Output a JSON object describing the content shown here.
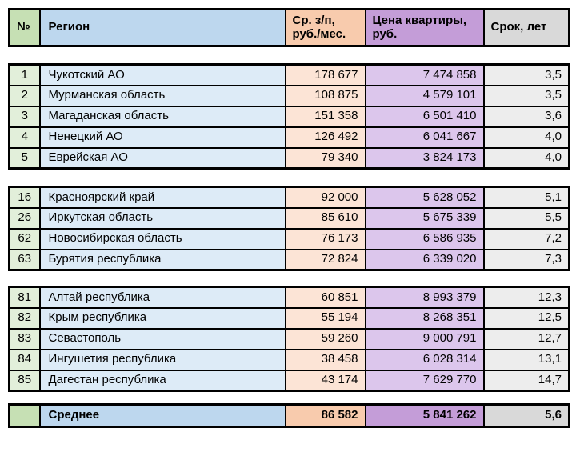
{
  "chart_data": {
    "type": "table",
    "columns": [
      "№",
      "Регион",
      "Ср. з/п, руб./мес.",
      "Цена квартиры, руб.",
      "Срок, лет"
    ],
    "groups": [
      {
        "rows": [
          {
            "num": "1",
            "region": "Чукотский АО",
            "salary": "178 677",
            "price": "7 474 858",
            "term": "3,5"
          },
          {
            "num": "2",
            "region": "Мурманская область",
            "salary": "108 875",
            "price": "4 579 101",
            "term": "3,5"
          },
          {
            "num": "3",
            "region": "Магаданская область",
            "salary": "151 358",
            "price": "6 501 410",
            "term": "3,6"
          },
          {
            "num": "4",
            "region": "Ненецкий АО",
            "salary": "126 492",
            "price": "6 041 667",
            "term": "4,0"
          },
          {
            "num": "5",
            "region": "Еврейская АО",
            "salary": "79 340",
            "price": "3 824 173",
            "term": "4,0"
          }
        ]
      },
      {
        "rows": [
          {
            "num": "16",
            "region": "Красноярский край",
            "salary": "92 000",
            "price": "5 628 052",
            "term": "5,1"
          },
          {
            "num": "26",
            "region": "Иркутская область",
            "salary": "85 610",
            "price": "5 675 339",
            "term": "5,5"
          },
          {
            "num": "62",
            "region": "Новосибирская область",
            "salary": "76 173",
            "price": "6 586 935",
            "term": "7,2"
          },
          {
            "num": "63",
            "region": "Бурятия республика",
            "salary": "72 824",
            "price": "6 339 020",
            "term": "7,3"
          }
        ]
      },
      {
        "rows": [
          {
            "num": "81",
            "region": "Алтай республика",
            "salary": "60 851",
            "price": "8 993 379",
            "term": "12,3"
          },
          {
            "num": "82",
            "region": "Крым республика",
            "salary": "55 194",
            "price": "8 268 351",
            "term": "12,5"
          },
          {
            "num": "83",
            "region": "Севастополь",
            "salary": "59 260",
            "price": "9 000 791",
            "term": "12,7"
          },
          {
            "num": "84",
            "region": "Ингушетия республика",
            "salary": "38 458",
            "price": "6 028 314",
            "term": "13,1"
          },
          {
            "num": "85",
            "region": "Дагестан республика",
            "salary": "43 174",
            "price": "7 629 770",
            "term": "14,7"
          }
        ]
      }
    ],
    "summary": {
      "num": "",
      "region": "Среднее",
      "salary": "86 582",
      "price": "5 841 262",
      "term": "5,6"
    }
  },
  "colors": {
    "header_green": "#C6E0B4",
    "header_blue": "#BDD7EE",
    "header_orange": "#F8CBAD",
    "header_purple": "#C49DD8",
    "header_gray": "#D9D9D9",
    "body_green": "#E2EFDA",
    "body_blue": "#DDEBF7",
    "body_orange": "#FCE4D6",
    "body_purple": "#DCC6EC",
    "body_gray": "#EDEDED",
    "border": "#000000"
  }
}
